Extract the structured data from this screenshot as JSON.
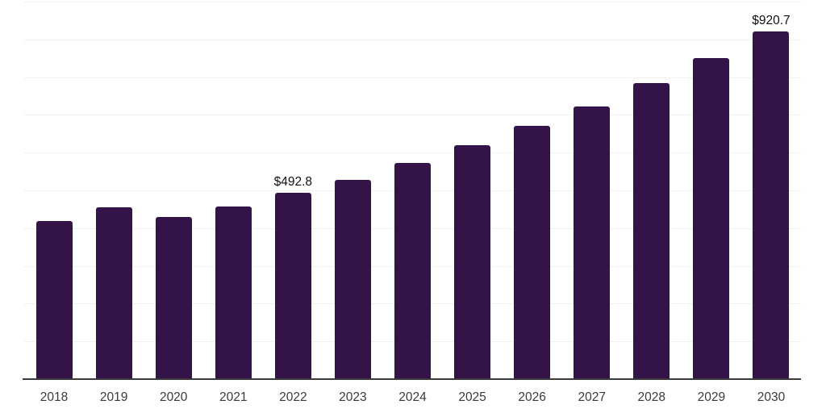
{
  "chart_data": {
    "type": "bar",
    "title": "",
    "xlabel": "",
    "ylabel": "",
    "categories": [
      "2018",
      "2019",
      "2020",
      "2021",
      "2022",
      "2023",
      "2024",
      "2025",
      "2026",
      "2027",
      "2028",
      "2029",
      "2030"
    ],
    "values": [
      418.6,
      456.0,
      430.5,
      458.3,
      492.8,
      528.7,
      572.8,
      619.1,
      670.3,
      722.2,
      783.4,
      850.8,
      920.7
    ],
    "value_labels": [
      "",
      "",
      "",
      "",
      "$492.8",
      "",
      "",
      "",
      "",
      "",
      "",
      "",
      "$920.7"
    ],
    "ylim": [
      0,
      1000
    ],
    "grid_step": 100,
    "grid": "horizontal",
    "legend": "none",
    "y_axis_tick_labels": "none",
    "style": {
      "bar_color": "#341349",
      "gridline_color": "#f1f1f1",
      "axis_line_color": "#3b3b3b",
      "tick_label_color": "#3a3a3a",
      "value_label_color": "#101010",
      "background_color": "#ffffff"
    }
  }
}
